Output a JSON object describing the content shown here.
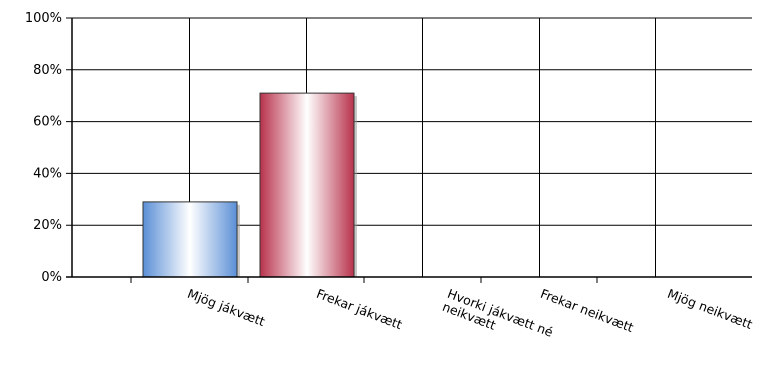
{
  "chart_data": {
    "type": "bar",
    "categories": [
      [
        "Mjög jákvætt"
      ],
      [
        "Frekar jákvætt"
      ],
      [
        "Hvorki jákvætt né",
        "neikvætt"
      ],
      [
        "Frekar neikvætt"
      ],
      [
        "Mjög neikvætt"
      ]
    ],
    "values": [
      29,
      71,
      0,
      0,
      0
    ],
    "ylim": [
      0,
      100
    ],
    "yticks": [
      0,
      20,
      40,
      60,
      80,
      100
    ],
    "ytick_labels": [
      "0%",
      "20%",
      "40%",
      "60%",
      "80%",
      "100%"
    ],
    "grid": true,
    "bar_colors": [
      "#5b8fd6",
      "#b8324c"
    ]
  }
}
